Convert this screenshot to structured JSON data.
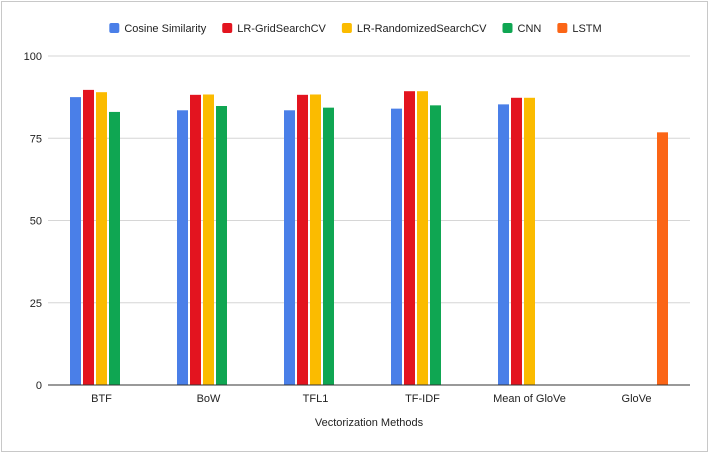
{
  "chart_data": {
    "type": "bar",
    "title": "",
    "xlabel": "Vectorization Methods",
    "ylabel": "",
    "ylim": [
      0,
      100
    ],
    "yticks": [
      0,
      25,
      50,
      75,
      100
    ],
    "grid": true,
    "legend_position": "top",
    "categories": [
      "BTF",
      "BoW",
      "TFL1",
      "TF-IDF",
      "Mean of GloVe",
      "GloVe"
    ],
    "series": [
      {
        "name": "Cosine Similarity",
        "color": "#4a7fe8",
        "values": [
          87.5,
          83.5,
          83.5,
          84,
          85.3,
          null
        ]
      },
      {
        "name": "LR-GridSearchCV",
        "color": "#e3141f",
        "values": [
          89.7,
          88.2,
          88.2,
          89.3,
          87.3,
          null
        ]
      },
      {
        "name": "LR-RandomizedSearchCV",
        "color": "#fbbb00",
        "values": [
          89,
          88.3,
          88.3,
          89.3,
          87.3,
          null
        ]
      },
      {
        "name": "CNN",
        "color": "#0fa652",
        "values": [
          83,
          84.8,
          84.3,
          85,
          null,
          null
        ]
      },
      {
        "name": "LSTM",
        "color": "#fb6516",
        "values": [
          null,
          null,
          null,
          null,
          null,
          76.8
        ]
      }
    ]
  }
}
